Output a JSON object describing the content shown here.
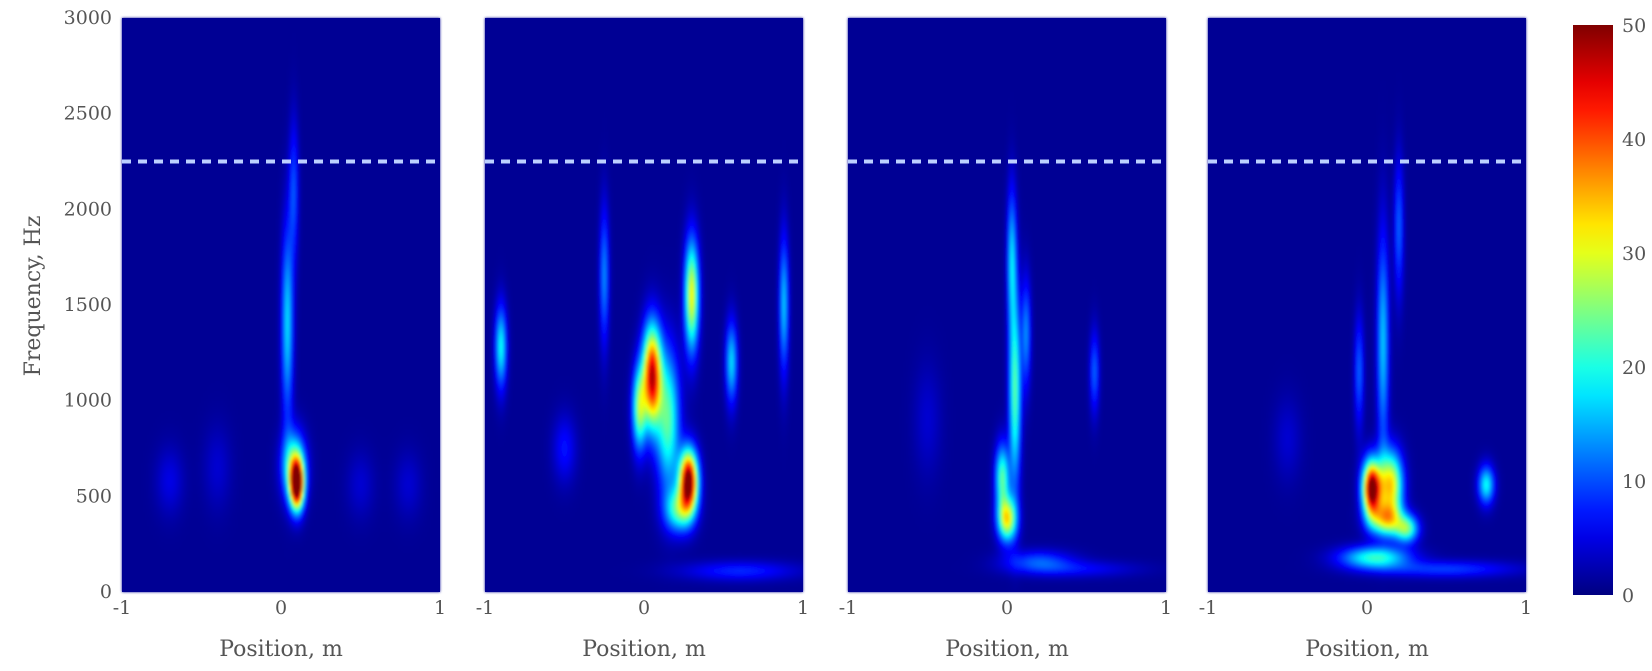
{
  "colors": {
    "background": "#00008f",
    "dashed_line": "#bcd0ff",
    "colormap": [
      "#00008f",
      "#0000ff",
      "#00ffff",
      "#ffff00",
      "#ff0000",
      "#800000"
    ]
  },
  "chart_data": {
    "type": "heatmap",
    "colormap": "jet",
    "xlabel": "Position, m",
    "ylabel": "Frequency, Hz",
    "xlim": [
      -1,
      1
    ],
    "ylim": [
      0,
      3000
    ],
    "x_ticks": [
      "-1",
      "0",
      "1"
    ],
    "y_ticks": [
      "0",
      "500",
      "1000",
      "1500",
      "2000",
      "2500",
      "3000"
    ],
    "dashed_line_frequency": 2250,
    "colorbar": {
      "range": [
        0,
        50
      ],
      "ticks": [
        "0",
        "10",
        "20",
        "30",
        "40",
        "50"
      ]
    },
    "panels": [
      {
        "blobs": [
          {
            "x": 0.1,
            "y": 560,
            "sx": 0.03,
            "sy": 90,
            "v": 50
          },
          {
            "x": 0.08,
            "y": 660,
            "sx": 0.05,
            "sy": 120,
            "v": 22
          },
          {
            "x": 0.04,
            "y": 1400,
            "sx": 0.025,
            "sy": 350,
            "v": 16
          },
          {
            "x": 0.08,
            "y": 2100,
            "sx": 0.02,
            "sy": 250,
            "v": 9
          },
          {
            "x": -0.7,
            "y": 580,
            "sx": 0.06,
            "sy": 120,
            "v": 4
          },
          {
            "x": -0.4,
            "y": 650,
            "sx": 0.06,
            "sy": 150,
            "v": 3
          },
          {
            "x": 0.5,
            "y": 560,
            "sx": 0.06,
            "sy": 120,
            "v": 3
          },
          {
            "x": 0.8,
            "y": 560,
            "sx": 0.06,
            "sy": 120,
            "v": 3
          }
        ]
      },
      {
        "blobs": [
          {
            "x": 0.28,
            "y": 580,
            "sx": 0.04,
            "sy": 110,
            "v": 52
          },
          {
            "x": 0.05,
            "y": 1130,
            "sx": 0.04,
            "sy": 180,
            "v": 45
          },
          {
            "x": 0.22,
            "y": 430,
            "sx": 0.06,
            "sy": 80,
            "v": 20
          },
          {
            "x": 0.3,
            "y": 1550,
            "sx": 0.03,
            "sy": 200,
            "v": 30
          },
          {
            "x": 0.15,
            "y": 900,
            "sx": 0.05,
            "sy": 250,
            "v": 22
          },
          {
            "x": -0.03,
            "y": 960,
            "sx": 0.03,
            "sy": 150,
            "v": 24
          },
          {
            "x": -0.9,
            "y": 1280,
            "sx": 0.025,
            "sy": 150,
            "v": 18
          },
          {
            "x": -0.25,
            "y": 1650,
            "sx": 0.02,
            "sy": 250,
            "v": 12
          },
          {
            "x": 0.55,
            "y": 1200,
            "sx": 0.025,
            "sy": 150,
            "v": 16
          },
          {
            "x": 0.88,
            "y": 1500,
            "sx": 0.02,
            "sy": 250,
            "v": 15
          },
          {
            "x": -0.5,
            "y": 750,
            "sx": 0.05,
            "sy": 120,
            "v": 6
          },
          {
            "x": 0.6,
            "y": 110,
            "sx": 0.25,
            "sy": 35,
            "v": 7
          }
        ]
      },
      {
        "blobs": [
          {
            "x": 0.0,
            "y": 380,
            "sx": 0.04,
            "sy": 80,
            "v": 30
          },
          {
            "x": -0.03,
            "y": 600,
            "sx": 0.03,
            "sy": 120,
            "v": 22
          },
          {
            "x": 0.05,
            "y": 1050,
            "sx": 0.025,
            "sy": 350,
            "v": 22
          },
          {
            "x": 0.03,
            "y": 1750,
            "sx": 0.02,
            "sy": 250,
            "v": 15
          },
          {
            "x": 0.12,
            "y": 1350,
            "sx": 0.02,
            "sy": 200,
            "v": 12
          },
          {
            "x": 0.55,
            "y": 1150,
            "sx": 0.02,
            "sy": 150,
            "v": 10
          },
          {
            "x": 0.2,
            "y": 160,
            "sx": 0.15,
            "sy": 40,
            "v": 9
          },
          {
            "x": 0.45,
            "y": 120,
            "sx": 0.25,
            "sy": 30,
            "v": 5
          },
          {
            "x": -0.5,
            "y": 900,
            "sx": 0.06,
            "sy": 200,
            "v": 3
          }
        ]
      },
      {
        "blobs": [
          {
            "x": 0.03,
            "y": 540,
            "sx": 0.04,
            "sy": 100,
            "v": 52
          },
          {
            "x": 0.15,
            "y": 560,
            "sx": 0.05,
            "sy": 120,
            "v": 32
          },
          {
            "x": 0.12,
            "y": 380,
            "sx": 0.07,
            "sy": 60,
            "v": 25
          },
          {
            "x": 0.25,
            "y": 330,
            "sx": 0.05,
            "sy": 50,
            "v": 22
          },
          {
            "x": 0.05,
            "y": 180,
            "sx": 0.15,
            "sy": 40,
            "v": 20
          },
          {
            "x": 0.1,
            "y": 1300,
            "sx": 0.025,
            "sy": 400,
            "v": 15
          },
          {
            "x": -0.05,
            "y": 1150,
            "sx": 0.02,
            "sy": 200,
            "v": 10
          },
          {
            "x": 0.2,
            "y": 1900,
            "sx": 0.02,
            "sy": 250,
            "v": 10
          },
          {
            "x": 0.75,
            "y": 560,
            "sx": 0.035,
            "sy": 70,
            "v": 18
          },
          {
            "x": 0.5,
            "y": 120,
            "sx": 0.3,
            "sy": 30,
            "v": 8
          },
          {
            "x": -0.5,
            "y": 800,
            "sx": 0.06,
            "sy": 150,
            "v": 3
          }
        ]
      }
    ]
  }
}
